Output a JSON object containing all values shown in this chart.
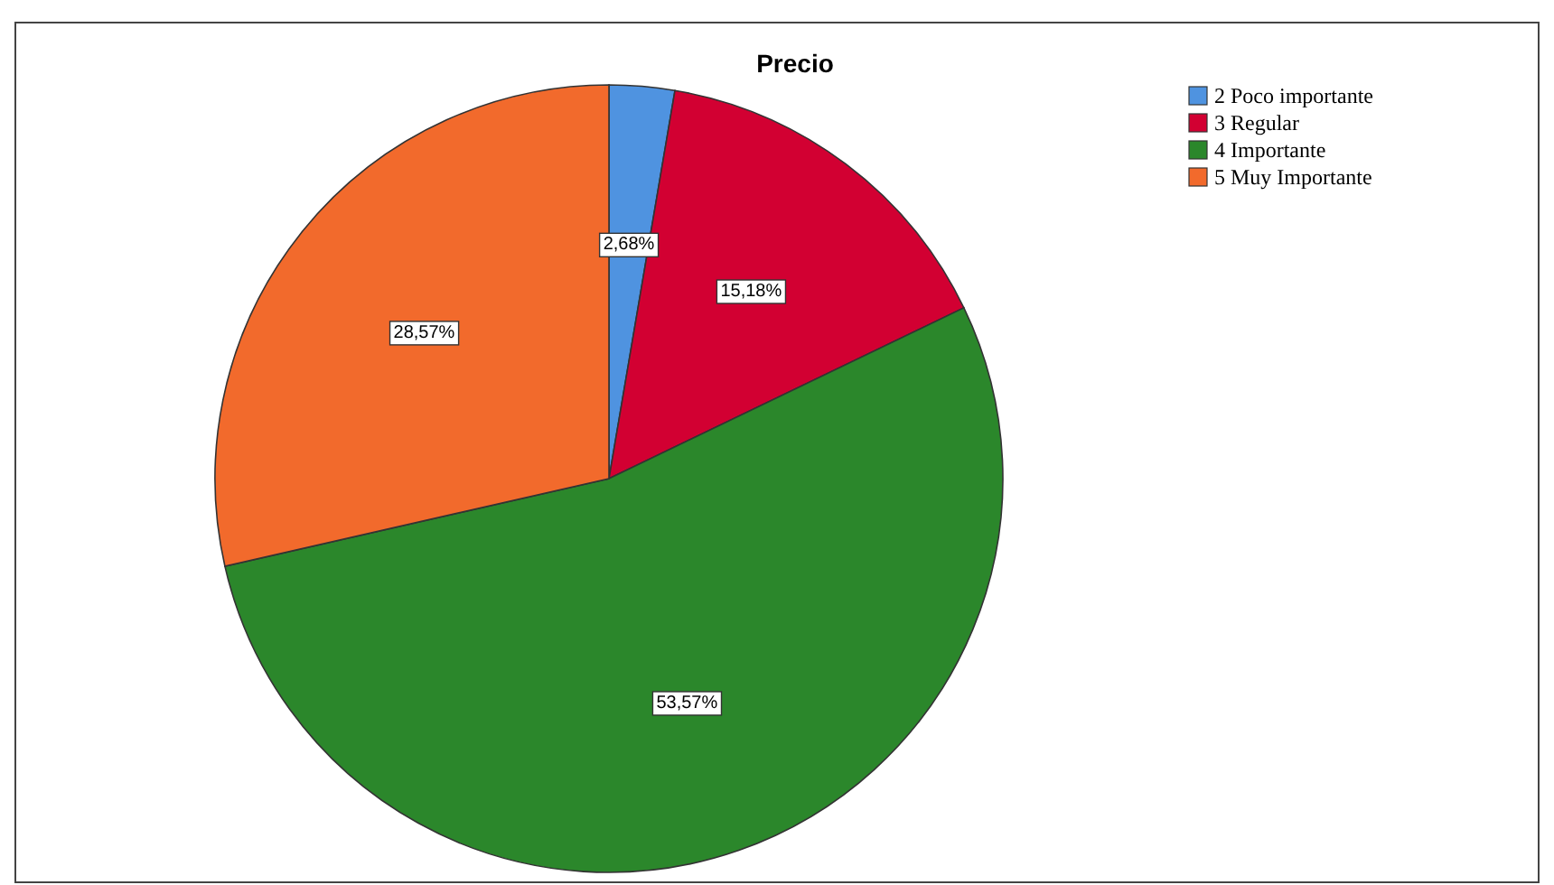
{
  "chart_data": {
    "type": "pie",
    "title": "Precio",
    "categories": [
      "2 Poco importante",
      "3 Regular",
      "4 Importante",
      "5 Muy Importante"
    ],
    "values": [
      2.68,
      15.18,
      53.57,
      28.57
    ],
    "colors": [
      "#4f93e0",
      "#d20032",
      "#2b872b",
      "#f26a2c"
    ],
    "value_labels": [
      "2,68%",
      "15,18%",
      "53,57%",
      "28,57%"
    ],
    "legend": "top right"
  }
}
